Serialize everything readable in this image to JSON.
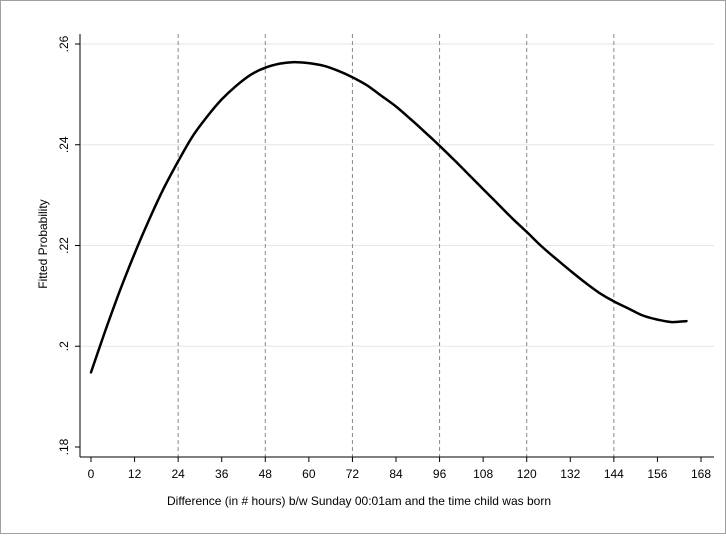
{
  "chart_data": {
    "type": "line",
    "title": "",
    "xlabel": "Difference (in # hours) b/w Sunday 00:01am and the time child was born",
    "ylabel": "Fitted Probability",
    "xlim": [
      0,
      168
    ],
    "ylim": [
      0.18,
      0.26
    ],
    "x_ticks": [
      0,
      12,
      24,
      36,
      48,
      60,
      72,
      84,
      96,
      108,
      120,
      132,
      144,
      156,
      168
    ],
    "x_tick_labels": [
      "0",
      "12",
      "24",
      "36",
      "48",
      "60",
      "72",
      "84",
      "96",
      "108",
      "120",
      "132",
      "144",
      "156",
      "168"
    ],
    "y_ticks": [
      0.18,
      0.2,
      0.22,
      0.24,
      0.26
    ],
    "y_tick_labels": [
      ".18",
      ".2",
      ".22",
      ".24",
      ".26"
    ],
    "vertical_reference_lines": [
      24,
      48,
      72,
      96,
      120,
      144
    ],
    "grid": "horizontal",
    "legend": "none",
    "line_color": "#000000",
    "series": [
      {
        "x": [
          0,
          4,
          8,
          12,
          16,
          20,
          24,
          28,
          32,
          36,
          40,
          44,
          48,
          52,
          56,
          60,
          64,
          68,
          72,
          76,
          80,
          84,
          88,
          92,
          96,
          100,
          104,
          108,
          112,
          116,
          120,
          124,
          128,
          132,
          136,
          140,
          144,
          148,
          152,
          156,
          160,
          164
        ],
        "y": [
          0.1948,
          0.2032,
          0.2111,
          0.2184,
          0.2251,
          0.2313,
          0.2367,
          0.2417,
          0.2456,
          0.249,
          0.2517,
          0.2539,
          0.2553,
          0.2561,
          0.2564,
          0.2562,
          0.2557,
          0.2547,
          0.2534,
          0.2518,
          0.2497,
          0.2476,
          0.2451,
          0.2425,
          0.2398,
          0.237,
          0.2341,
          0.2312,
          0.2283,
          0.2254,
          0.2227,
          0.2199,
          0.2174,
          0.215,
          0.2127,
          0.2106,
          0.2089,
          0.2075,
          0.2061,
          0.2053,
          0.2048,
          0.205
        ]
      }
    ]
  }
}
